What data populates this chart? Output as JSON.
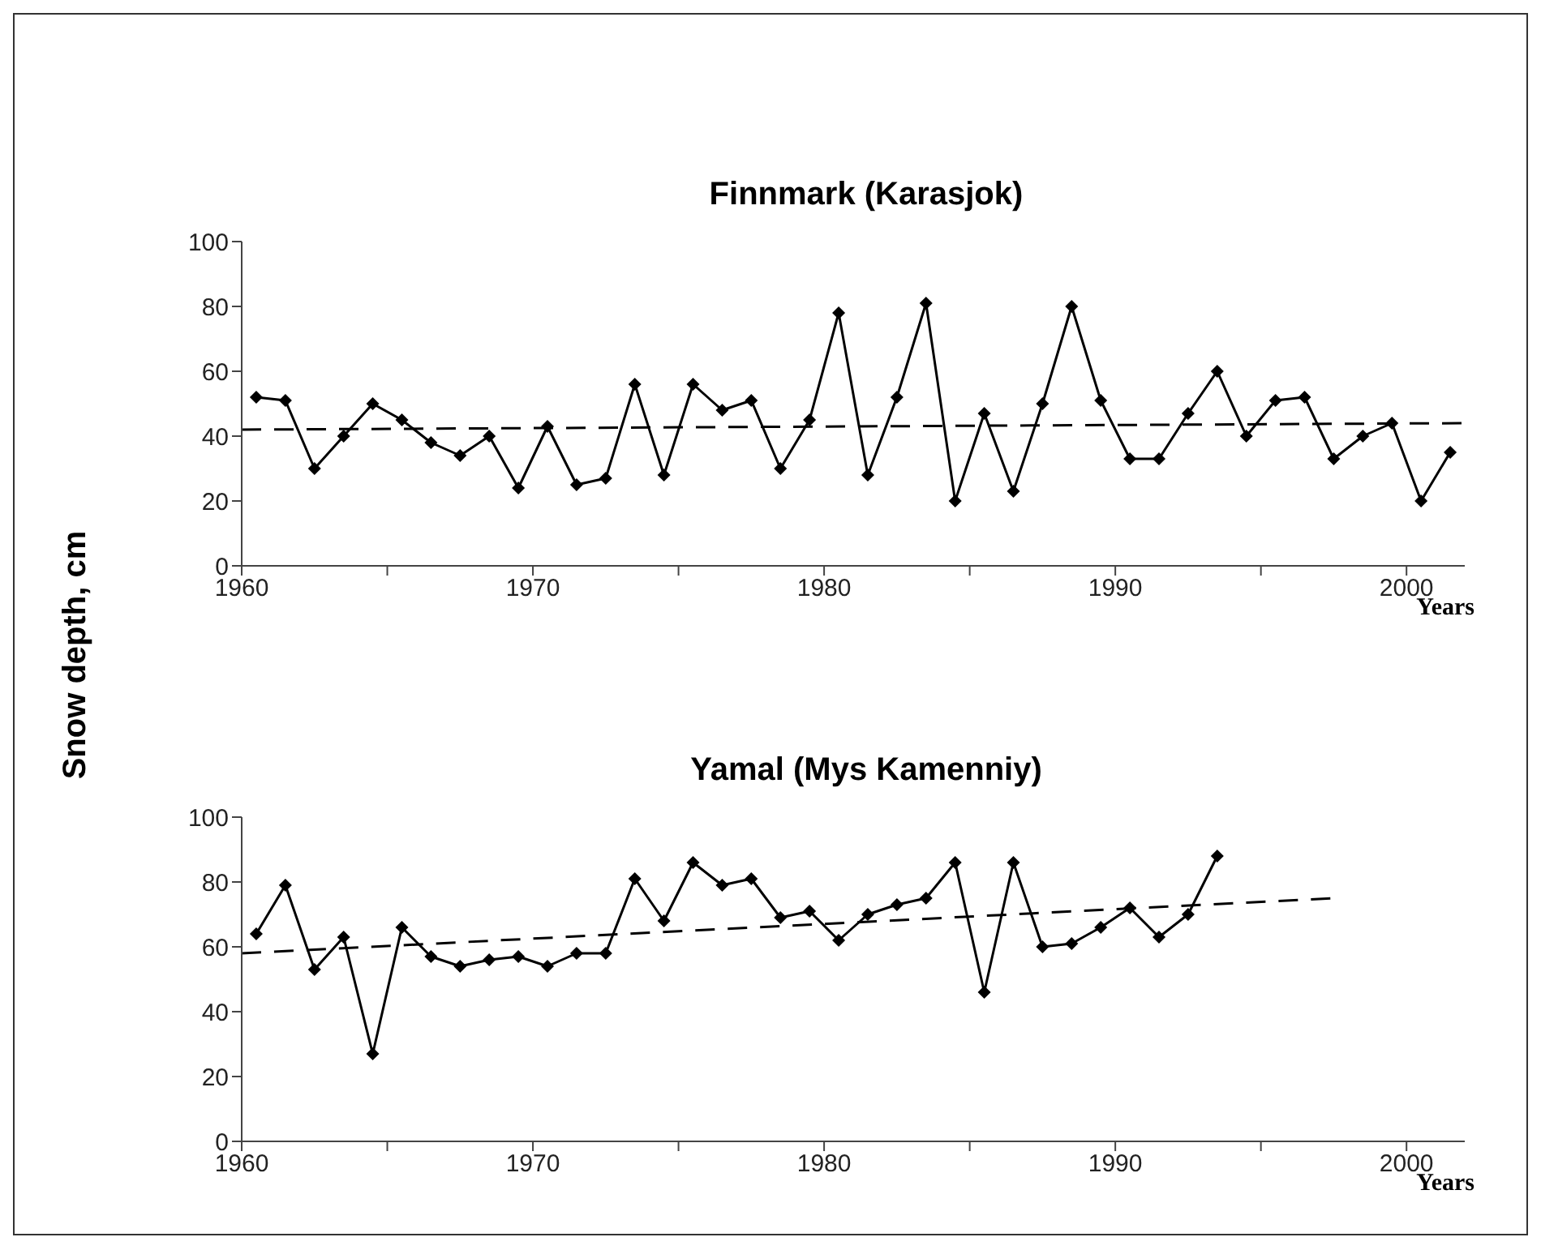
{
  "chart_data": [
    {
      "type": "line",
      "title": "Finnmark (Karasjok)",
      "xlabel": "Years",
      "xlim": [
        1960,
        2002
      ],
      "ylim": [
        0,
        100
      ],
      "xticks": [
        1960,
        {
          "value": 1965,
          "label": null
        },
        1970,
        {
          "value": 1975,
          "label": null
        },
        1980,
        {
          "value": 1985,
          "label": null
        },
        1990,
        {
          "value": 1995,
          "label": null
        },
        2000
      ],
      "yticks": [
        0,
        20,
        40,
        60,
        80,
        100
      ],
      "marker": "diamond",
      "line_style": "solid",
      "x": [
        1960.5,
        1961.5,
        1962.5,
        1963.5,
        1964.5,
        1965.5,
        1966.5,
        1967.5,
        1968.5,
        1969.5,
        1970.5,
        1971.5,
        1972.5,
        1973.5,
        1974.5,
        1975.5,
        1976.5,
        1977.5,
        1978.5,
        1979.5,
        1980.5,
        1981.5,
        1982.5,
        1983.5,
        1984.5,
        1985.5,
        1986.5,
        1987.5,
        1988.5,
        1989.5,
        1990.5,
        1991.5,
        1992.5,
        1993.5,
        1994.5,
        1995.5,
        1996.5,
        1997.5,
        1998.5,
        1999.5,
        2000.5,
        2001.5
      ],
      "series": [
        {
          "color": "#000000",
          "values": [
            52,
            51,
            30,
            40,
            50,
            45,
            38,
            34,
            40,
            24,
            43,
            25,
            27,
            56,
            28,
            56,
            48,
            51,
            30,
            45,
            78,
            28,
            52,
            81,
            20,
            47,
            23,
            50,
            80,
            51,
            33,
            33,
            47,
            60,
            40,
            51,
            52,
            33,
            40,
            44,
            20,
            35
          ]
        },
        {
          "type": "line",
          "color": "#000000",
          "x": [
            1960,
            2002
          ],
          "values": [
            42,
            44
          ],
          "line_style": "dashed",
          "marker": "none"
        }
      ]
    },
    {
      "type": "line",
      "title": "Yamal (Mys Kamenniy)",
      "xlabel": "Years",
      "ylabel": "Snow depth, cm",
      "xlim": [
        1960,
        2002
      ],
      "ylim": [
        0,
        100
      ],
      "xticks": [
        1960,
        {
          "value": 1965,
          "label": null
        },
        1970,
        {
          "value": 1975,
          "label": null
        },
        1980,
        {
          "value": 1985,
          "label": null
        },
        1990,
        {
          "value": 1995,
          "label": null
        },
        2000
      ],
      "yticks": [
        0,
        20,
        40,
        60,
        80,
        100
      ],
      "marker": "diamond",
      "line_style": "solid",
      "x": [
        1960.5,
        1961.5,
        1962.5,
        1963.5,
        1964.5,
        1965.5,
        1966.5,
        1967.5,
        1968.5,
        1969.5,
        1970.5,
        1971.5,
        1972.5,
        1973.5,
        1974.5,
        1975.5,
        1976.5,
        1977.5,
        1978.5,
        1979.5,
        1980.5,
        1981.5,
        1982.5,
        1983.5,
        1984.5,
        1985.5,
        1986.5,
        1987.5,
        1988.5,
        1989.5,
        1990.5,
        1991.5,
        1992.5,
        1993.5
      ],
      "series": [
        {
          "color": "#000000",
          "values": [
            64,
            79,
            53,
            63,
            27,
            66,
            57,
            54,
            56,
            57,
            54,
            58,
            58,
            81,
            68,
            86,
            79,
            81,
            69,
            71,
            62,
            70,
            73,
            75,
            86,
            46,
            86,
            60,
            61,
            66,
            72,
            63,
            70,
            88
          ]
        },
        {
          "type": "line",
          "color": "#000000",
          "x": [
            1960,
            1997.5
          ],
          "values": [
            58,
            75
          ],
          "line_style": "dashed",
          "marker": "none"
        }
      ]
    }
  ]
}
